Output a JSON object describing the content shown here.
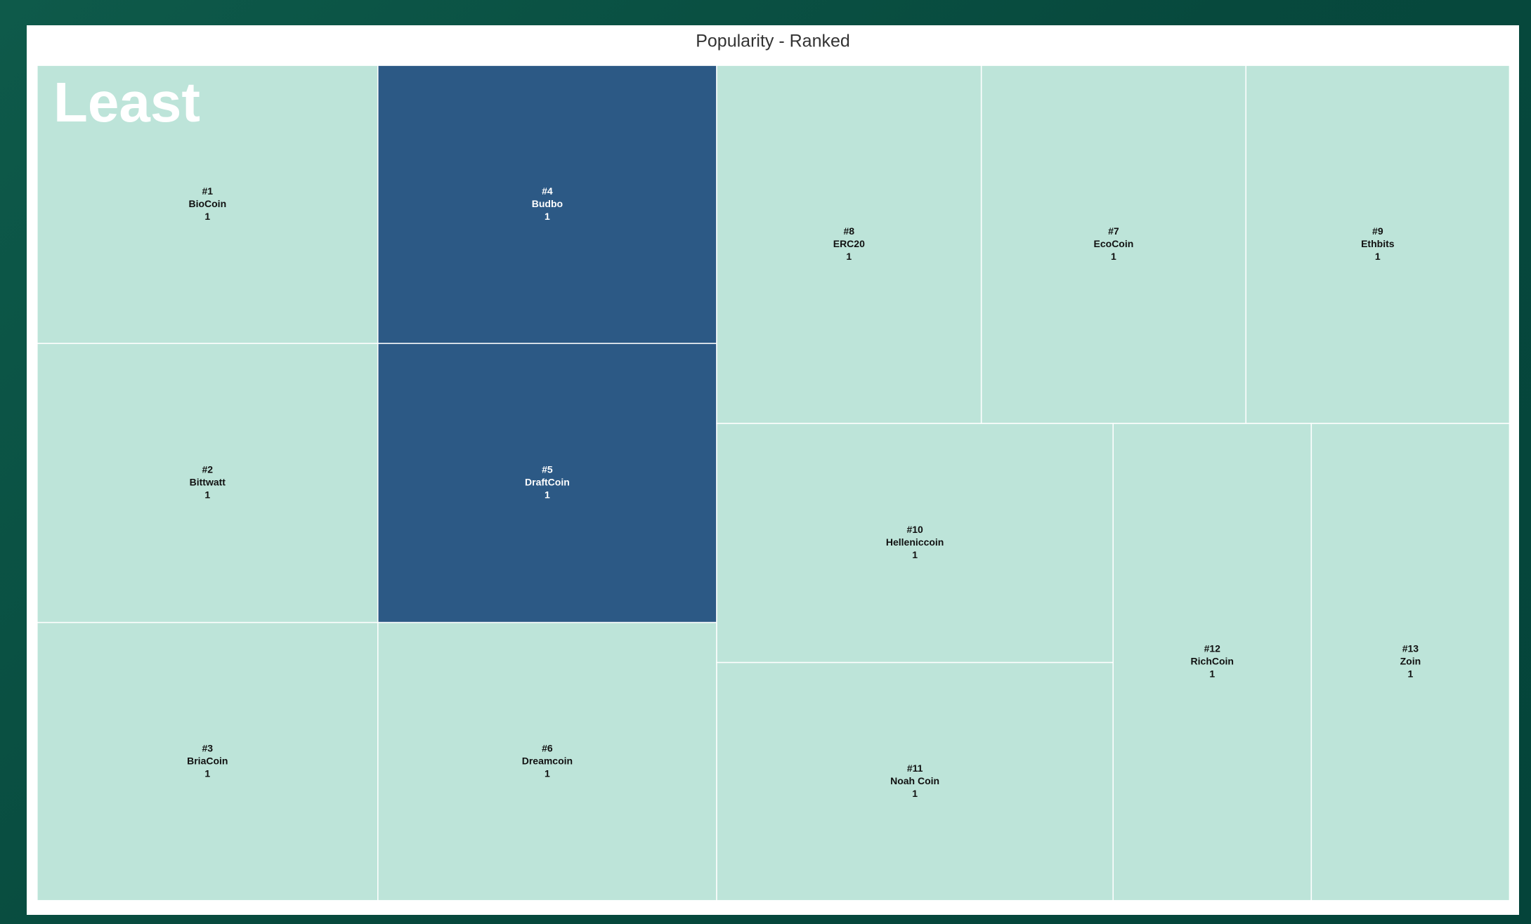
{
  "chart_data": {
    "type": "treemap",
    "title": "Popularity - Ranked",
    "annotation": "Least",
    "items": [
      {
        "rank": "#1",
        "name": "BioCoin",
        "value": 1,
        "color": "#bde4d9"
      },
      {
        "rank": "#2",
        "name": "Bittwatt",
        "value": 1,
        "color": "#bde4d9"
      },
      {
        "rank": "#3",
        "name": "BriaCoin",
        "value": 1,
        "color": "#bde4d9"
      },
      {
        "rank": "#4",
        "name": "Budbo",
        "value": 1,
        "color": "#2c5985"
      },
      {
        "rank": "#5",
        "name": "DraftCoin",
        "value": 1,
        "color": "#2c5985"
      },
      {
        "rank": "#6",
        "name": "Dreamcoin",
        "value": 1,
        "color": "#bde4d9"
      },
      {
        "rank": "#7",
        "name": "EcoCoin",
        "value": 1,
        "color": "#bde4d9"
      },
      {
        "rank": "#8",
        "name": "ERC20",
        "value": 1,
        "color": "#bde4d9"
      },
      {
        "rank": "#9",
        "name": "Ethbits",
        "value": 1,
        "color": "#bde4d9"
      },
      {
        "rank": "#10",
        "name": "Helleniccoin",
        "value": 1,
        "color": "#bde4d9"
      },
      {
        "rank": "#11",
        "name": "Noah Coin",
        "value": 1,
        "color": "#bde4d9"
      },
      {
        "rank": "#12",
        "name": "RichCoin",
        "value": 1,
        "color": "#bde4d9"
      },
      {
        "rank": "#13",
        "name": "Zoin",
        "value": 1,
        "color": "#bde4d9"
      }
    ]
  }
}
